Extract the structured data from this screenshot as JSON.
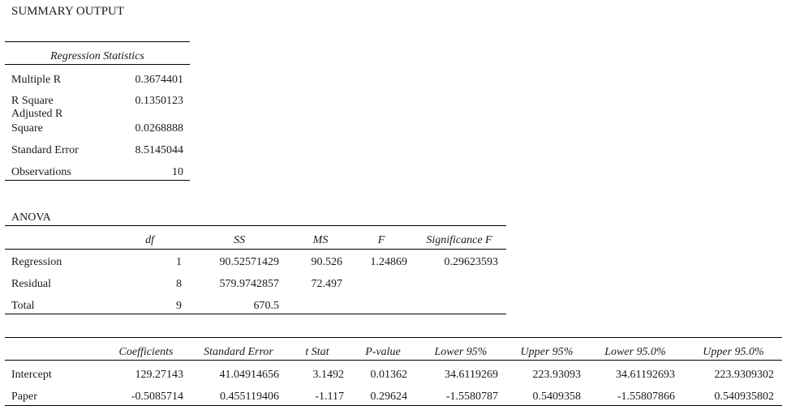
{
  "title": "SUMMARY OUTPUT",
  "regression_statistics": {
    "header": "Regression Statistics",
    "rows": [
      {
        "label": "Multiple R",
        "value": "0.3674401"
      },
      {
        "label": "R Square",
        "value": "0.1350123"
      },
      {
        "label_line1": "Adjusted R",
        "label_line2": "Square",
        "value": "0.0268888"
      },
      {
        "label": "Standard Error",
        "value": "8.5145044"
      },
      {
        "label": "Observations",
        "value": "10"
      }
    ]
  },
  "anova": {
    "title": "ANOVA",
    "headers": [
      "df",
      "SS",
      "MS",
      "F",
      "Significance F"
    ],
    "rows": [
      {
        "label": "Regression",
        "df": "1",
        "ss": "90.52571429",
        "ms": "90.526",
        "f": "1.24869",
        "sig": "0.29623593"
      },
      {
        "label": "Residual",
        "df": "8",
        "ss": "579.9742857",
        "ms": "72.497",
        "f": "",
        "sig": ""
      },
      {
        "label": "Total",
        "df": "9",
        "ss": "670.5",
        "ms": "",
        "f": "",
        "sig": ""
      }
    ]
  },
  "coefficients": {
    "headers": [
      "Coefficients",
      "Standard Error",
      "t Stat",
      "P-value",
      "Lower 95%",
      "Upper 95%",
      "Lower 95.0%",
      "Upper 95.0%"
    ],
    "rows": [
      {
        "label": "Intercept",
        "values": [
          "129.27143",
          "41.04914656",
          "3.1492",
          "0.01362",
          "34.6119269",
          "223.93093",
          "34.61192693",
          "223.9309302"
        ]
      },
      {
        "label": "Paper",
        "values": [
          "-0.5085714",
          "0.455119406",
          "-1.117",
          "0.29624",
          "-1.5580787",
          "0.5409358",
          "-1.55807866",
          "0.540935802"
        ]
      }
    ]
  }
}
